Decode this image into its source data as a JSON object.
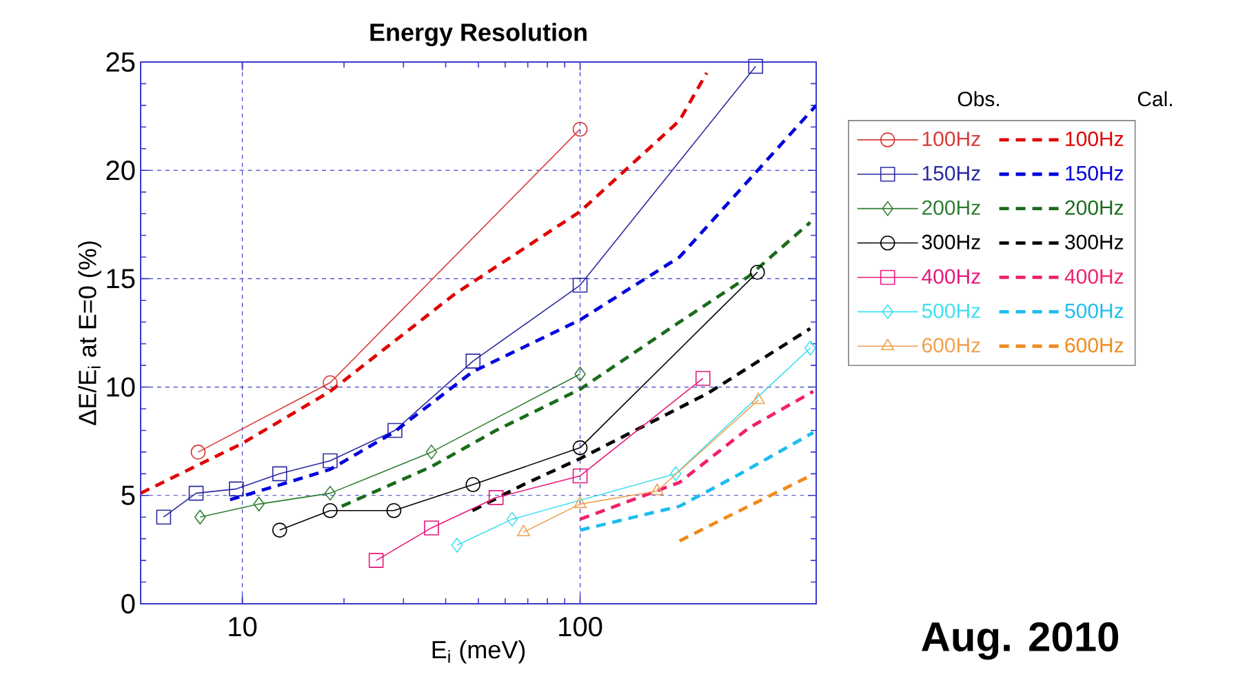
{
  "chart_data": {
    "type": "line",
    "title": "Energy Resolution",
    "xlabel": "E$_{i}$ (meV)",
    "ylabel": "ΔE/E$_{i}$ at E=0 (%)",
    "log": "x",
    "xlim": [
      5,
      500
    ],
    "xticks": [
      10,
      100
    ],
    "ylim": [
      0,
      25
    ],
    "yticks": [
      0,
      5,
      10,
      15,
      20,
      25
    ],
    "grid": true,
    "legend": "right",
    "annotations": [
      "Obs.",
      "Cal.",
      "Aug. 2010"
    ],
    "series": [
      {
        "name": "100Hz",
        "color": "#d83a3a",
        "marker": "circle",
        "line_style": "solid",
        "x": [
          7.4,
          18.2,
          100
        ],
        "values": [
          7.0,
          10.2,
          21.9
        ]
      },
      {
        "name": "100Hz",
        "color": "#e00000",
        "marker": "none",
        "line_style": "dashed",
        "x": [
          5,
          10,
          18.2,
          42.6,
          100,
          197,
          237
        ],
        "values": [
          5.1,
          7.4,
          9.8,
          14.3,
          18.1,
          22.3,
          24.5
        ]
      },
      {
        "name": "150Hz",
        "color": "#2a2aa0",
        "marker": "square",
        "line_style": "solid",
        "x": [
          5.85,
          7.3,
          9.6,
          12.9,
          18.2,
          28.3,
          48.2,
          100,
          331
        ],
        "values": [
          4.0,
          5.1,
          5.3,
          6.0,
          6.6,
          8.0,
          11.2,
          14.7,
          24.8
        ]
      },
      {
        "name": "150Hz",
        "color": "#0000dd",
        "marker": "none",
        "line_style": "dashed",
        "x": [
          9.2,
          13,
          18.2,
          28,
          48,
          100,
          197,
          500
        ],
        "values": [
          4.8,
          5.5,
          6.2,
          7.9,
          10.7,
          13.1,
          16.0,
          23.0
        ]
      },
      {
        "name": "200Hz",
        "color": "#2e7d32",
        "marker": "diamond",
        "line_style": "solid",
        "x": [
          7.5,
          11.2,
          18.2,
          36.3,
          100
        ],
        "values": [
          4.0,
          4.6,
          5.1,
          7.0,
          10.6
        ]
      },
      {
        "name": "200Hz",
        "color": "#1a6b1a",
        "marker": "none",
        "line_style": "dashed",
        "x": [
          19.7,
          36,
          56.4,
          100,
          197,
          315,
          480
        ],
        "values": [
          4.5,
          6.3,
          8.0,
          9.9,
          13.0,
          15.1,
          17.6
        ]
      },
      {
        "name": "300Hz",
        "color": "#000000",
        "marker": "circle",
        "line_style": "solid",
        "x": [
          12.9,
          18.2,
          28.1,
          48.2,
          100,
          335
        ],
        "values": [
          3.4,
          4.3,
          4.3,
          5.5,
          7.2,
          15.3
        ]
      },
      {
        "name": "300Hz",
        "color": "#000000",
        "marker": "none",
        "line_style": "dashed",
        "x": [
          48,
          68,
          100,
          238,
          480
        ],
        "values": [
          4.3,
          5.5,
          6.7,
          9.7,
          12.7
        ]
      },
      {
        "name": "400Hz",
        "color": "#e8157a",
        "marker": "square",
        "line_style": "solid",
        "x": [
          24.9,
          36.3,
          56.4,
          100,
          231
        ],
        "values": [
          2.0,
          3.5,
          4.9,
          5.9,
          10.4
        ]
      },
      {
        "name": "400Hz",
        "color": "#f0206e",
        "marker": "none",
        "line_style": "dashed",
        "x": [
          100,
          197,
          315,
          490
        ],
        "values": [
          3.9,
          5.6,
          8.1,
          9.8
        ]
      },
      {
        "name": "500Hz",
        "color": "#40dff0",
        "marker": "diamond",
        "line_style": "solid",
        "x": [
          43.2,
          62.9,
          192,
          480
        ],
        "values": [
          2.7,
          3.9,
          6.0,
          11.8
        ]
      },
      {
        "name": "500Hz",
        "color": "#1cbcf0",
        "marker": "none",
        "line_style": "dashed",
        "x": [
          100,
          197,
          298,
          490
        ],
        "values": [
          3.4,
          4.5,
          6.0,
          7.9
        ]
      },
      {
        "name": "600Hz",
        "color": "#f0a050",
        "marker": "triangle",
        "line_style": "solid",
        "x": [
          68,
          100,
          169,
          337
        ],
        "values": [
          3.3,
          4.6,
          5.2,
          9.4
        ]
      },
      {
        "name": "600Hz",
        "color": "#f08a1e",
        "marker": "none",
        "line_style": "dashed",
        "x": [
          197,
          297,
          480
        ],
        "values": [
          2.9,
          4.3,
          5.9
        ]
      }
    ]
  }
}
